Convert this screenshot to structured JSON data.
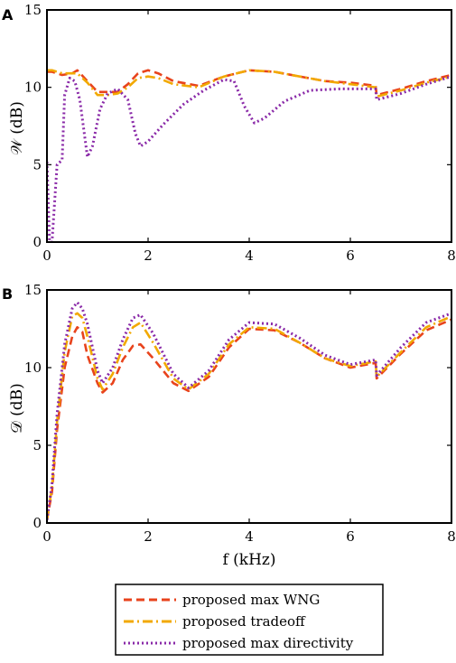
{
  "chart_data": [
    {
      "panel": "A",
      "type": "line",
      "title": "",
      "xlabel": "",
      "ylabel": "𝒲 (dB)",
      "xlim": [
        0,
        8
      ],
      "ylim": [
        0,
        15
      ],
      "xticks": [
        0,
        2,
        4,
        6,
        8
      ],
      "yticks": [
        0,
        5,
        10,
        15
      ],
      "grid": false,
      "series": [
        {
          "name": "proposed max WNG",
          "color": "#e8431c",
          "style": "dashed",
          "x": [
            0,
            0.1,
            0.3,
            0.5,
            0.6,
            0.8,
            1.0,
            1.2,
            1.4,
            1.6,
            1.8,
            2.0,
            2.2,
            2.5,
            3.0,
            3.5,
            4.0,
            4.5,
            5.0,
            5.5,
            6.0,
            6.5,
            6.52,
            7.0,
            7.5,
            8.0
          ],
          "y": [
            11.0,
            11.0,
            10.8,
            10.9,
            11.1,
            10.4,
            9.7,
            9.7,
            9.7,
            10.2,
            10.9,
            11.1,
            10.9,
            10.4,
            10.1,
            10.7,
            11.1,
            11.0,
            10.7,
            10.4,
            10.3,
            10.1,
            9.5,
            9.9,
            10.4,
            10.8
          ]
        },
        {
          "name": "proposed tradeoff",
          "color": "#f2a900",
          "style": "dashdot",
          "x": [
            0,
            0.1,
            0.3,
            0.5,
            0.6,
            0.8,
            1.0,
            1.2,
            1.4,
            1.6,
            1.8,
            2.0,
            2.2,
            2.5,
            3.0,
            3.5,
            4.0,
            4.5,
            5.0,
            5.5,
            6.0,
            6.5,
            6.52,
            7.0,
            7.5,
            8.0
          ],
          "y": [
            11.1,
            11.1,
            10.9,
            10.9,
            10.9,
            10.3,
            9.5,
            9.5,
            9.6,
            10.0,
            10.6,
            10.7,
            10.6,
            10.2,
            10.0,
            10.7,
            11.1,
            11.0,
            10.7,
            10.4,
            10.2,
            10.0,
            9.4,
            9.8,
            10.3,
            10.7
          ]
        },
        {
          "name": "proposed max directivity",
          "color": "#8a2aa8",
          "style": "dotted",
          "x": [
            0.0,
            0.05,
            0.1,
            0.2,
            0.3,
            0.35,
            0.45,
            0.55,
            0.65,
            0.8,
            0.9,
            1.05,
            1.2,
            1.4,
            1.6,
            1.75,
            1.85,
            2.0,
            2.3,
            2.7,
            3.1,
            3.5,
            3.7,
            3.9,
            4.1,
            4.3,
            4.7,
            5.2,
            5.8,
            6.3,
            6.5,
            6.52,
            7.0,
            7.5,
            8.0
          ],
          "y": [
            5.2,
            0.1,
            0.0,
            5.0,
            5.3,
            9.5,
            10.6,
            10.4,
            9.2,
            5.5,
            6.2,
            8.6,
            9.6,
            9.9,
            9.2,
            7.0,
            6.2,
            6.5,
            7.6,
            8.9,
            9.8,
            10.5,
            10.4,
            8.8,
            7.7,
            8.0,
            9.1,
            9.8,
            9.9,
            9.9,
            9.9,
            9.2,
            9.6,
            10.2,
            10.7
          ]
        }
      ]
    },
    {
      "panel": "B",
      "type": "line",
      "title": "",
      "xlabel": "f (kHz)",
      "ylabel": "𝒟 (dB)",
      "xlim": [
        0,
        8
      ],
      "ylim": [
        0,
        15
      ],
      "xticks": [
        0,
        2,
        4,
        6,
        8
      ],
      "yticks": [
        0,
        5,
        10,
        15
      ],
      "grid": false,
      "series": [
        {
          "name": "proposed max WNG",
          "color": "#e8431c",
          "style": "dashed",
          "x": [
            0.0,
            0.1,
            0.2,
            0.35,
            0.5,
            0.6,
            0.7,
            0.8,
            1.0,
            1.1,
            1.3,
            1.5,
            1.7,
            1.85,
            2.1,
            2.5,
            2.8,
            3.2,
            3.6,
            4.0,
            4.5,
            5.0,
            5.5,
            6.0,
            6.5,
            6.52,
            7.0,
            7.5,
            8.0
          ],
          "y": [
            0.2,
            2.0,
            6.0,
            10.0,
            12.0,
            12.6,
            12.3,
            10.8,
            9.0,
            8.4,
            9.0,
            10.5,
            11.4,
            11.5,
            10.6,
            9.0,
            8.5,
            9.4,
            11.3,
            12.5,
            12.4,
            11.6,
            10.6,
            10.0,
            10.3,
            9.3,
            10.9,
            12.4,
            13.1
          ]
        },
        {
          "name": "proposed tradeoff",
          "color": "#f2a900",
          "style": "dashdot",
          "x": [
            0.0,
            0.1,
            0.2,
            0.35,
            0.5,
            0.6,
            0.7,
            0.8,
            1.0,
            1.1,
            1.3,
            1.5,
            1.7,
            1.85,
            2.1,
            2.5,
            2.8,
            3.2,
            3.6,
            4.0,
            4.5,
            5.0,
            5.5,
            6.0,
            6.5,
            6.52,
            7.0,
            7.5,
            8.0
          ],
          "y": [
            0.2,
            2.3,
            6.5,
            11.0,
            13.3,
            13.5,
            13.2,
            12.0,
            9.3,
            8.6,
            9.6,
            11.3,
            12.6,
            12.9,
            11.6,
            9.3,
            8.6,
            9.6,
            11.5,
            12.6,
            12.5,
            11.6,
            10.6,
            10.1,
            10.4,
            9.4,
            11.0,
            12.6,
            13.3
          ]
        },
        {
          "name": "proposed max directivity",
          "color": "#8a2aa8",
          "style": "dotted",
          "x": [
            0.0,
            0.1,
            0.2,
            0.35,
            0.5,
            0.6,
            0.7,
            0.8,
            1.0,
            1.1,
            1.3,
            1.5,
            1.7,
            1.85,
            2.1,
            2.5,
            2.8,
            3.2,
            3.6,
            4.0,
            4.5,
            5.0,
            5.5,
            6.0,
            6.5,
            6.52,
            7.0,
            7.5,
            8.0
          ],
          "y": [
            0.2,
            2.5,
            7.0,
            11.5,
            13.8,
            14.2,
            13.8,
            12.8,
            9.8,
            9.0,
            10.0,
            11.8,
            13.2,
            13.4,
            12.2,
            9.6,
            8.7,
            9.8,
            11.8,
            12.9,
            12.8,
            11.9,
            10.8,
            10.2,
            10.5,
            9.5,
            11.3,
            12.9,
            13.5
          ]
        }
      ]
    }
  ],
  "legend": {
    "placement": "bottom",
    "items": [
      {
        "label": "proposed max WNG",
        "color": "#e8431c",
        "style": "dashed"
      },
      {
        "label": "proposed tradeoff",
        "color": "#f2a900",
        "style": "dashdot"
      },
      {
        "label": "proposed max directivity",
        "color": "#8a2aa8",
        "style": "dotted"
      }
    ]
  }
}
